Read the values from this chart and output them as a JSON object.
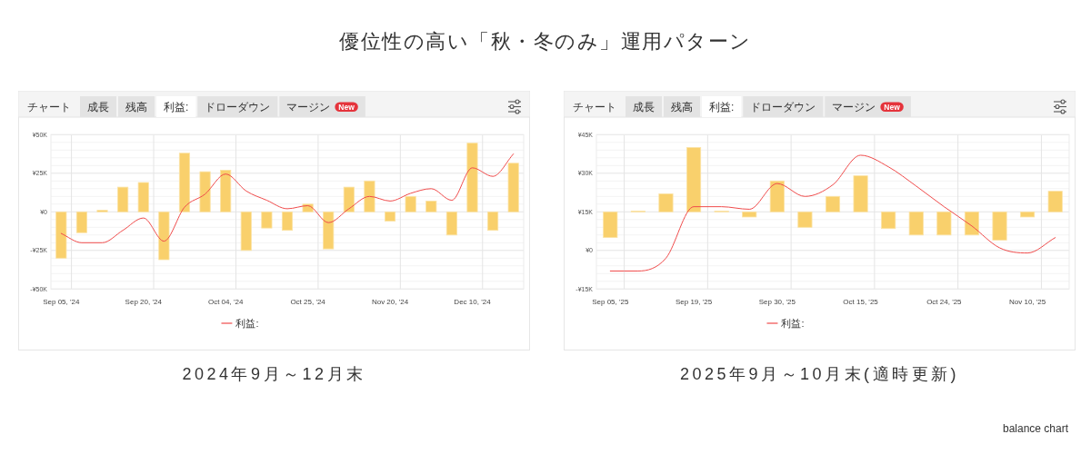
{
  "chart_data": [
    {
      "type": "other",
      "title": "優位性の高い「秋・冬のみ」運用パターン",
      "annotations": [
        "balance chart"
      ]
    },
    {
      "type": "bar",
      "title": "2024年9月～12月末",
      "annotations": [
        "チャート",
        "成長",
        "残高",
        "利益:",
        "ドローダウン",
        "マージン",
        "New"
      ],
      "categories": [
        "Sep 05, '24",
        null,
        null,
        null,
        "Sep 20, '24",
        null,
        null,
        null,
        "Oct 04, '24",
        null,
        null,
        null,
        "Oct 25, '24",
        null,
        null,
        null,
        "Nov 20, '24",
        null,
        null,
        null,
        "Dec 10, '24",
        null,
        null
      ],
      "series": [
        {
          "type": "bar",
          "color": "#f9d06c",
          "values": [
            -30,
            -13.5,
            1,
            16,
            19,
            -31,
            38,
            26,
            27,
            -25,
            -10.5,
            -12,
            5,
            -24,
            16,
            20,
            -6,
            10,
            7,
            -15,
            44.5,
            -12,
            31.5
          ]
        },
        {
          "type": "line",
          "name": "利益:",
          "color": "#f04b4b",
          "values": [
            -14,
            -20,
            -20,
            -12,
            -4,
            -19,
            3,
            11.5,
            24.5,
            13.5,
            7.5,
            2,
            4,
            -7,
            2,
            10,
            7,
            12,
            15,
            7.5,
            28.5,
            23,
            37.5
          ]
        }
      ],
      "ylim": [
        -50,
        50
      ],
      "yticks": [
        {
          "value": -50,
          "label": "-¥50K"
        },
        {
          "value": -45,
          "label": null
        },
        {
          "value": -40,
          "label": null
        },
        {
          "value": -35,
          "label": null
        },
        {
          "value": -30,
          "label": null
        },
        {
          "value": -25,
          "label": "-¥25K"
        },
        {
          "value": -20,
          "label": null
        },
        {
          "value": -15,
          "label": null
        },
        {
          "value": -10,
          "label": null
        },
        {
          "value": -5,
          "label": null
        },
        {
          "value": 0,
          "label": "¥0"
        },
        {
          "value": 5,
          "label": null
        },
        {
          "value": 10,
          "label": null
        },
        {
          "value": 15,
          "label": null
        },
        {
          "value": 20,
          "label": null
        },
        {
          "value": 25,
          "label": "¥25K"
        },
        {
          "value": 30,
          "label": null
        },
        {
          "value": 35,
          "label": null
        },
        {
          "value": 40,
          "label": null
        },
        {
          "value": 45,
          "label": null
        },
        {
          "value": 50,
          "label": "¥50K"
        }
      ],
      "grid": true,
      "legend": "bottom"
    },
    {
      "type": "bar",
      "title": "2025年9月～10月末(適時更新)",
      "annotations": [
        "チャート",
        "成長",
        "残高",
        "利益:",
        "ドローダウン",
        "マージン",
        "New"
      ],
      "categories": [
        "Sep 05, '25",
        null,
        null,
        "Sep 19, '25",
        null,
        null,
        "Sep 30, '25",
        null,
        null,
        "Oct 15, '25",
        null,
        null,
        "Oct 24, '25",
        null,
        null,
        "Nov 10, '25",
        null
      ],
      "series": [
        {
          "type": "bar",
          "color": "#f9d06c",
          "base": [
            15,
            15,
            15,
            15,
            15,
            15,
            15,
            15,
            15,
            15,
            15,
            15,
            15,
            15,
            15,
            15,
            15
          ],
          "values": [
            -10,
            0.3,
            7,
            25,
            0.3,
            -2,
            12,
            -6,
            6,
            14,
            -6.5,
            -9,
            -9,
            -9,
            -11,
            -2,
            8
          ]
        },
        {
          "type": "line",
          "name": "利益:",
          "color": "#f04b4b",
          "values": [
            -8,
            -8,
            -3,
            17,
            17,
            16,
            26,
            21,
            25.5,
            37,
            32.5,
            25,
            17,
            9.5,
            1,
            -1,
            5
          ]
        }
      ],
      "ylim": [
        -15,
        45
      ],
      "yticks": [
        {
          "value": -15,
          "label": "-¥15K"
        },
        {
          "value": -12,
          "label": null
        },
        {
          "value": -9,
          "label": null
        },
        {
          "value": -6,
          "label": null
        },
        {
          "value": -3,
          "label": null
        },
        {
          "value": 0,
          "label": "¥0"
        },
        {
          "value": 3,
          "label": null
        },
        {
          "value": 6,
          "label": null
        },
        {
          "value": 9,
          "label": null
        },
        {
          "value": 12,
          "label": null
        },
        {
          "value": 15,
          "label": "¥15K"
        },
        {
          "value": 18,
          "label": null
        },
        {
          "value": 21,
          "label": null
        },
        {
          "value": 24,
          "label": null
        },
        {
          "value": 27,
          "label": null
        },
        {
          "value": 30,
          "label": "¥30K"
        },
        {
          "value": 33,
          "label": null
        },
        {
          "value": 36,
          "label": null
        },
        {
          "value": 39,
          "label": null
        },
        {
          "value": 42,
          "label": null
        },
        {
          "value": 45,
          "label": "¥45K"
        }
      ],
      "grid": true,
      "legend": "bottom"
    }
  ]
}
